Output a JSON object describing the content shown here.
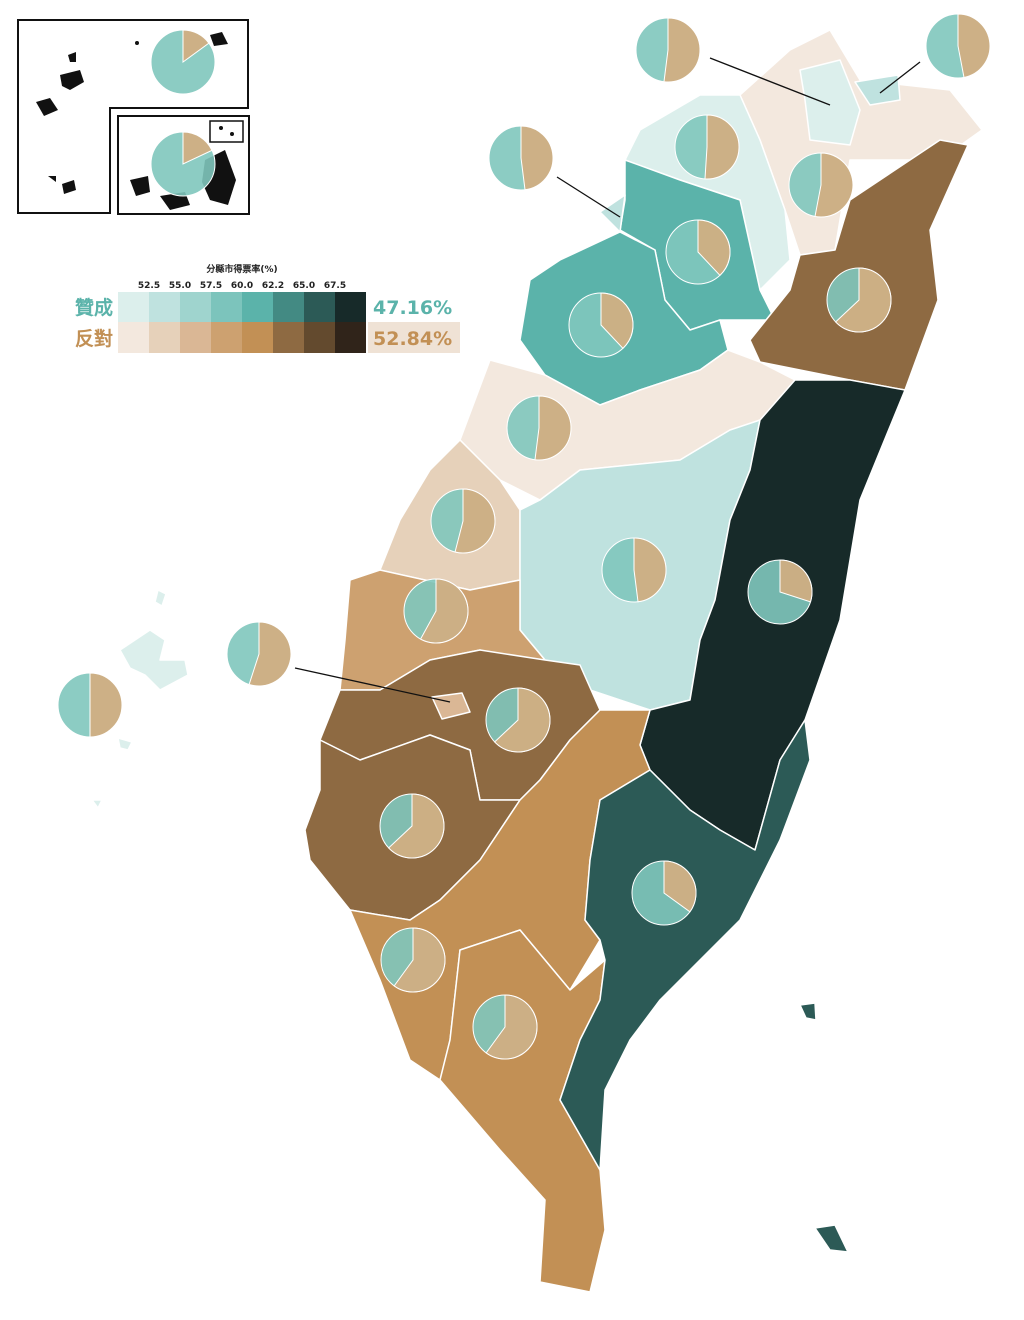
{
  "legend": {
    "title": "分縣市得票率(%)",
    "ticks": [
      "52.5",
      "55.0",
      "57.5",
      "60.0",
      "62.2",
      "65.0",
      "67.5"
    ],
    "yes": {
      "label": "贊成",
      "total": "47.16%",
      "color": "#5bb3aa",
      "scale": [
        "#dcefec",
        "#bfe2df",
        "#9fd4ce",
        "#7cc4bc",
        "#5bb3aa",
        "#438a83",
        "#2c5a56",
        "#172a29"
      ]
    },
    "no": {
      "label": "反對",
      "total": "52.84%",
      "color": "#c29055",
      "scale": [
        "#f3e8de",
        "#e6d1ba",
        "#dab795",
        "#cda170",
        "#c29055",
        "#8e6a42",
        "#634a2e",
        "#30241a"
      ]
    }
  },
  "colors": {
    "yes_pie": "#7fc7bd",
    "no_pie": "#d4ad80",
    "yes_total_bg": "#ffffff",
    "no_total_bg": "#efe2d5"
  },
  "counties": [
    {
      "id": "keelung",
      "fill": "#bfe2df",
      "yes_share": 53
    },
    {
      "id": "taipei",
      "fill": "#dcefec",
      "yes_share": 48
    },
    {
      "id": "new-taipei",
      "fill": "#f3e8de",
      "yes_share": 47
    },
    {
      "id": "taoyuan",
      "fill": "#dcefec",
      "yes_share": 49
    },
    {
      "id": "hsinchu-city",
      "fill": "#bfe2df",
      "yes_share": 52
    },
    {
      "id": "hsinchu-county",
      "fill": "#5bb3aa",
      "yes_share": 62
    },
    {
      "id": "miaoli",
      "fill": "#5bb3aa",
      "yes_share": 62
    },
    {
      "id": "yilan",
      "fill": "#8e6a42",
      "yes_share": 37
    },
    {
      "id": "taichung",
      "fill": "#f3e8de",
      "yes_share": 48
    },
    {
      "id": "changhua",
      "fill": "#e6d1ba",
      "yes_share": 46
    },
    {
      "id": "nantou",
      "fill": "#bfe2df",
      "yes_share": 52
    },
    {
      "id": "hualien",
      "fill": "#172a29",
      "yes_share": 70
    },
    {
      "id": "yunlin",
      "fill": "#cda170",
      "yes_share": 42
    },
    {
      "id": "chiayi-county",
      "fill": "#8e6a42",
      "yes_share": 37
    },
    {
      "id": "chiayi-city",
      "fill": "#dab795",
      "yes_share": 45
    },
    {
      "id": "tainan",
      "fill": "#8e6a42",
      "yes_share": 37
    },
    {
      "id": "kaohsiung",
      "fill": "#c29055",
      "yes_share": 40
    },
    {
      "id": "pingtung",
      "fill": "#c29055",
      "yes_share": 40
    },
    {
      "id": "taitung",
      "fill": "#2c5a56",
      "yes_share": 65
    },
    {
      "id": "penghu",
      "fill": "#dcefec",
      "yes_share": 50
    },
    {
      "id": "lienchiang",
      "fill": "#172a29",
      "yes_share": 85
    },
    {
      "id": "kinmen",
      "fill": "#172a29",
      "yes_share": 82
    }
  ]
}
